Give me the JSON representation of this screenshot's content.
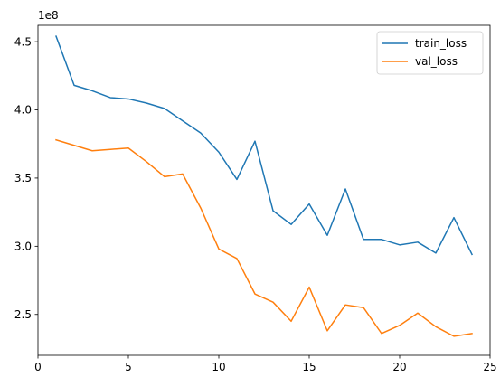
{
  "chart_data": {
    "type": "line",
    "title": "",
    "xlabel": "",
    "ylabel": "",
    "y_offset_label": "1e8",
    "xlim": [
      0,
      25
    ],
    "ylim": [
      2.2,
      4.62
    ],
    "x_ticks": [
      0,
      5,
      10,
      15,
      20,
      25
    ],
    "x_tick_labels": [
      "0",
      "5",
      "10",
      "15",
      "20",
      "25"
    ],
    "y_ticks": [
      2.5,
      3.0,
      3.5,
      4.0,
      4.5
    ],
    "y_tick_labels": [
      "2.5",
      "3.0",
      "3.5",
      "4.0",
      "4.5"
    ],
    "grid": false,
    "legend_position": "top-right",
    "x": [
      1,
      2,
      3,
      4,
      5,
      6,
      7,
      8,
      9,
      10,
      11,
      12,
      13,
      14,
      15,
      16,
      17,
      18,
      19,
      20,
      21,
      22,
      23,
      24
    ],
    "series": [
      {
        "name": "train_loss",
        "color": "#1f77b4",
        "values": [
          4.54,
          4.18,
          4.14,
          4.09,
          4.08,
          4.05,
          4.01,
          3.92,
          3.83,
          3.69,
          3.49,
          3.77,
          3.26,
          3.16,
          3.31,
          3.08,
          3.42,
          3.05,
          3.05,
          3.01,
          3.03,
          2.95,
          3.21,
          2.94
        ]
      },
      {
        "name": "val_loss",
        "color": "#ff7f0e",
        "values": [
          3.78,
          3.74,
          3.7,
          3.71,
          3.72,
          3.62,
          3.51,
          3.53,
          3.28,
          2.98,
          2.91,
          2.65,
          2.59,
          2.45,
          2.7,
          2.38,
          2.57,
          2.55,
          2.36,
          2.42,
          2.51,
          2.41,
          2.34,
          2.36
        ]
      }
    ]
  }
}
